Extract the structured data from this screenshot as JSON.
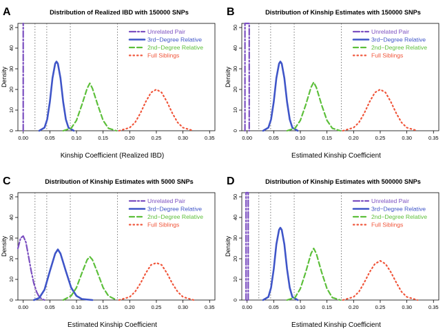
{
  "common": {
    "legend": [
      {
        "label": "Unrelated Pair",
        "color": "#7b4fc0",
        "dash": "dashdot"
      },
      {
        "label": "3rd−Degree Relative",
        "color": "#3f55c8",
        "dash": "solid"
      },
      {
        "label": "2nd−Degree Relative",
        "color": "#5cbf3a",
        "dash": "dashed"
      },
      {
        "label": "Full Siblings",
        "color": "#f0553a",
        "dash": "dotted"
      }
    ],
    "reference_lines_x": [
      0.0221,
      0.0442,
      0.0884,
      0.177
    ],
    "ylabel": "Density"
  },
  "chart_data": [
    {
      "type": "line",
      "panel_letter": "A",
      "title": "Distribution of Realized IBD with 150000 SNPs",
      "xlabel": "Kinship Coefficient (Realized IBD)",
      "xlim": [
        -0.01,
        0.36
      ],
      "ylim": [
        0,
        52
      ],
      "x_ticks": [
        "0.00",
        "0.05",
        "0.10",
        "0.15",
        "0.20",
        "0.25",
        "0.30",
        "0.35"
      ],
      "y_ticks": [
        "0",
        "10",
        "20",
        "30",
        "40",
        "50"
      ],
      "series": [
        {
          "name": "Unrelated Pair",
          "type": "spike",
          "x": 0.0,
          "values": [
            [
              0.0,
              0
            ],
            [
              0.0,
              52
            ]
          ]
        },
        {
          "name": "3rd−Degree Relative",
          "values": [
            [
              0.03,
              0.0
            ],
            [
              0.04,
              1.5
            ],
            [
              0.045,
              5.5
            ],
            [
              0.05,
              14
            ],
            [
              0.055,
              25.5
            ],
            [
              0.06,
              32.5
            ],
            [
              0.0625,
              33.5
            ],
            [
              0.065,
              32.5
            ],
            [
              0.07,
              25.5
            ],
            [
              0.075,
              14
            ],
            [
              0.08,
              5.5
            ],
            [
              0.085,
              1.5
            ],
            [
              0.095,
              0.0
            ]
          ]
        },
        {
          "name": "2nd−Degree Relative",
          "values": [
            [
              0.075,
              0.0
            ],
            [
              0.09,
              1.2
            ],
            [
              0.1,
              5
            ],
            [
              0.11,
              12.5
            ],
            [
              0.12,
              20.5
            ],
            [
              0.125,
              23
            ],
            [
              0.13,
              20.5
            ],
            [
              0.14,
              12.5
            ],
            [
              0.15,
              5
            ],
            [
              0.16,
              1.2
            ],
            [
              0.175,
              0.0
            ]
          ]
        },
        {
          "name": "Full Siblings",
          "values": [
            [
              0.18,
              0.0
            ],
            [
              0.2,
              1.5
            ],
            [
              0.21,
              4
            ],
            [
              0.22,
              8.5
            ],
            [
              0.23,
              14
            ],
            [
              0.24,
              18.5
            ],
            [
              0.25,
              20
            ],
            [
              0.26,
              18.5
            ],
            [
              0.27,
              14
            ],
            [
              0.28,
              8.5
            ],
            [
              0.29,
              4
            ],
            [
              0.3,
              1.5
            ],
            [
              0.32,
              0.0
            ]
          ]
        }
      ]
    },
    {
      "type": "line",
      "panel_letter": "B",
      "title": "Distribution of Kinship Estimates with 150000 SNPs",
      "xlabel": "Estimated Kinship Coefficient",
      "xlim": [
        -0.01,
        0.36
      ],
      "ylim": [
        0,
        52
      ],
      "x_ticks": [
        "0.00",
        "0.05",
        "0.10",
        "0.15",
        "0.20",
        "0.25",
        "0.30",
        "0.35"
      ],
      "y_ticks": [
        "0",
        "10",
        "20",
        "30",
        "40",
        "50"
      ],
      "series": [
        {
          "name": "Unrelated Pair",
          "type": "spike",
          "x": 0.0,
          "values": [
            [
              -0.004,
              0
            ],
            [
              -0.004,
              52
            ],
            [
              0.004,
              52
            ],
            [
              0.004,
              0
            ]
          ]
        },
        {
          "name": "3rd−Degree Relative",
          "values": [
            [
              0.03,
              0.0
            ],
            [
              0.04,
              1.5
            ],
            [
              0.045,
              5.5
            ],
            [
              0.05,
              14
            ],
            [
              0.055,
              25.5
            ],
            [
              0.06,
              32.5
            ],
            [
              0.0625,
              33.5
            ],
            [
              0.065,
              32.5
            ],
            [
              0.07,
              25.5
            ],
            [
              0.075,
              14
            ],
            [
              0.08,
              5.5
            ],
            [
              0.085,
              1.5
            ],
            [
              0.095,
              0.0
            ]
          ]
        },
        {
          "name": "2nd−Degree Relative",
          "values": [
            [
              0.075,
              0.0
            ],
            [
              0.09,
              1.2
            ],
            [
              0.1,
              5
            ],
            [
              0.11,
              12.5
            ],
            [
              0.12,
              21
            ],
            [
              0.125,
              23.5
            ],
            [
              0.13,
              21
            ],
            [
              0.14,
              12.5
            ],
            [
              0.15,
              5
            ],
            [
              0.16,
              1.2
            ],
            [
              0.175,
              0.0
            ]
          ]
        },
        {
          "name": "Full Siblings",
          "values": [
            [
              0.18,
              0.0
            ],
            [
              0.2,
              1.5
            ],
            [
              0.21,
              4
            ],
            [
              0.22,
              8.5
            ],
            [
              0.23,
              14
            ],
            [
              0.24,
              18.5
            ],
            [
              0.25,
              20
            ],
            [
              0.26,
              18.5
            ],
            [
              0.27,
              14
            ],
            [
              0.28,
              8.5
            ],
            [
              0.29,
              4
            ],
            [
              0.3,
              1.5
            ],
            [
              0.32,
              0.0
            ]
          ]
        }
      ]
    },
    {
      "type": "line",
      "panel_letter": "C",
      "title": "Distribution of Kinship Estimates with 5000 SNPs",
      "xlabel": "Estimated Kinship Coefficient",
      "xlim": [
        -0.01,
        0.36
      ],
      "ylim": [
        0,
        52
      ],
      "x_ticks": [
        "0.00",
        "0.05",
        "0.10",
        "0.15",
        "0.20",
        "0.25",
        "0.30",
        "0.35"
      ],
      "y_ticks": [
        "0",
        "10",
        "20",
        "30",
        "40",
        "50"
      ],
      "series": [
        {
          "name": "Unrelated Pair",
          "values": [
            [
              -0.01,
              25
            ],
            [
              -0.005,
              30
            ],
            [
              0.0,
              31
            ],
            [
              0.005,
              28
            ],
            [
              0.01,
              21
            ],
            [
              0.015,
              14
            ],
            [
              0.02,
              8
            ],
            [
              0.025,
              4
            ],
            [
              0.03,
              1.5
            ],
            [
              0.035,
              0.5
            ],
            [
              0.04,
              0.0
            ]
          ]
        },
        {
          "name": "3rd−Degree Relative",
          "values": [
            [
              0.02,
              0.0
            ],
            [
              0.03,
              1
            ],
            [
              0.04,
              5
            ],
            [
              0.05,
              14
            ],
            [
              0.06,
              22.5
            ],
            [
              0.065,
              24.5
            ],
            [
              0.07,
              22.5
            ],
            [
              0.08,
              14
            ],
            [
              0.09,
              6
            ],
            [
              0.1,
              2
            ],
            [
              0.11,
              0.5
            ],
            [
              0.13,
              0.0
            ]
          ]
        },
        {
          "name": "2nd−Degree Relative",
          "values": [
            [
              0.075,
              0.0
            ],
            [
              0.09,
              2
            ],
            [
              0.1,
              6
            ],
            [
              0.11,
              13
            ],
            [
              0.12,
              19.5
            ],
            [
              0.125,
              21
            ],
            [
              0.13,
              19.5
            ],
            [
              0.14,
              13
            ],
            [
              0.15,
              6
            ],
            [
              0.16,
              2
            ],
            [
              0.175,
              0.0
            ]
          ]
        },
        {
          "name": "Full Siblings",
          "values": [
            [
              0.18,
              0.0
            ],
            [
              0.2,
              1.5
            ],
            [
              0.21,
              4
            ],
            [
              0.22,
              8
            ],
            [
              0.23,
              13
            ],
            [
              0.24,
              17
            ],
            [
              0.25,
              18
            ],
            [
              0.26,
              17
            ],
            [
              0.27,
              13
            ],
            [
              0.28,
              8
            ],
            [
              0.29,
              4
            ],
            [
              0.3,
              1.5
            ],
            [
              0.32,
              0.0
            ]
          ]
        }
      ]
    },
    {
      "type": "line",
      "panel_letter": "D",
      "title": "Distribution of Kinship Estimates with 500000 SNPs",
      "xlabel": "Estimated Kinship Coefficient",
      "xlim": [
        -0.01,
        0.36
      ],
      "ylim": [
        0,
        52
      ],
      "x_ticks": [
        "0.00",
        "0.05",
        "0.10",
        "0.15",
        "0.20",
        "0.25",
        "0.30",
        "0.35"
      ],
      "y_ticks": [
        "0",
        "10",
        "20",
        "30",
        "40",
        "50"
      ],
      "series": [
        {
          "name": "Unrelated Pair",
          "type": "spike",
          "x": 0.0,
          "values": [
            [
              -0.002,
              0
            ],
            [
              -0.002,
              52
            ],
            [
              0.002,
              52
            ],
            [
              0.002,
              0
            ]
          ]
        },
        {
          "name": "3rd−Degree Relative",
          "values": [
            [
              0.03,
              0.0
            ],
            [
              0.04,
              1.5
            ],
            [
              0.045,
              6
            ],
            [
              0.05,
              15
            ],
            [
              0.055,
              27
            ],
            [
              0.06,
              34
            ],
            [
              0.0625,
              35
            ],
            [
              0.065,
              34
            ],
            [
              0.07,
              27
            ],
            [
              0.075,
              15
            ],
            [
              0.08,
              6
            ],
            [
              0.085,
              1.5
            ],
            [
              0.095,
              0.0
            ]
          ]
        },
        {
          "name": "2nd−Degree Relative",
          "values": [
            [
              0.075,
              0.0
            ],
            [
              0.09,
              1.2
            ],
            [
              0.1,
              5.5
            ],
            [
              0.11,
              13.5
            ],
            [
              0.12,
              22.5
            ],
            [
              0.125,
              25
            ],
            [
              0.13,
              22.5
            ],
            [
              0.14,
              13.5
            ],
            [
              0.15,
              5.5
            ],
            [
              0.16,
              1.2
            ],
            [
              0.175,
              0.0
            ]
          ]
        },
        {
          "name": "Full Siblings",
          "values": [
            [
              0.18,
              0.0
            ],
            [
              0.2,
              1.5
            ],
            [
              0.21,
              4
            ],
            [
              0.22,
              8.5
            ],
            [
              0.23,
              13.5
            ],
            [
              0.24,
              17.5
            ],
            [
              0.25,
              19
            ],
            [
              0.26,
              17.5
            ],
            [
              0.27,
              13.5
            ],
            [
              0.28,
              8.5
            ],
            [
              0.29,
              4
            ],
            [
              0.3,
              1.5
            ],
            [
              0.32,
              0.0
            ]
          ]
        }
      ]
    }
  ]
}
